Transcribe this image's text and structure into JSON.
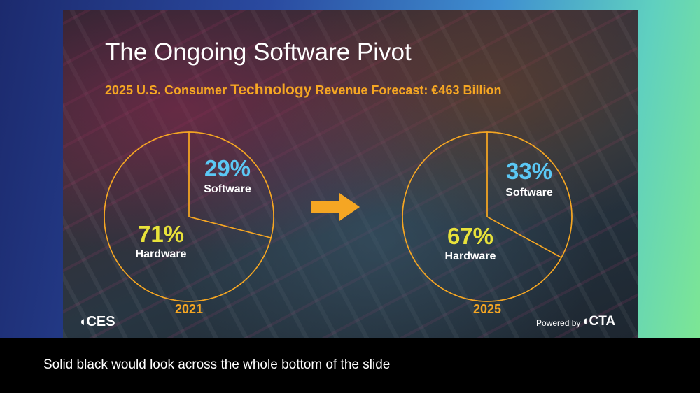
{
  "slide": {
    "title": "The Ongoing Software Pivot",
    "subtitle": {
      "before": "2025 U.S. Consumer ",
      "emphasis": "Technology",
      "after": " Revenue Forecast: €463 Billion"
    }
  },
  "chart_data": [
    {
      "type": "pie",
      "year_label": "2021",
      "slices": [
        {
          "label": "Software",
          "value": 29,
          "display": "29%"
        },
        {
          "label": "Hardware",
          "value": 71,
          "display": "71%"
        }
      ]
    },
    {
      "type": "pie",
      "year_label": "2025",
      "slices": [
        {
          "label": "Software",
          "value": 33,
          "display": "33%"
        },
        {
          "label": "Hardware",
          "value": 67,
          "display": "67%"
        }
      ]
    }
  ],
  "colors": {
    "accent_orange": "#f5a623",
    "software_blue": "#5bc8f5",
    "hardware_yellow": "#e8e23a"
  },
  "logos": {
    "ces_mark": "◖",
    "ces_text": "CES",
    "powered_by": "Powered by",
    "cta_mark": "◖",
    "cta_text": "CTA"
  },
  "caption": "Solid black would look across the whole bottom of the slide"
}
